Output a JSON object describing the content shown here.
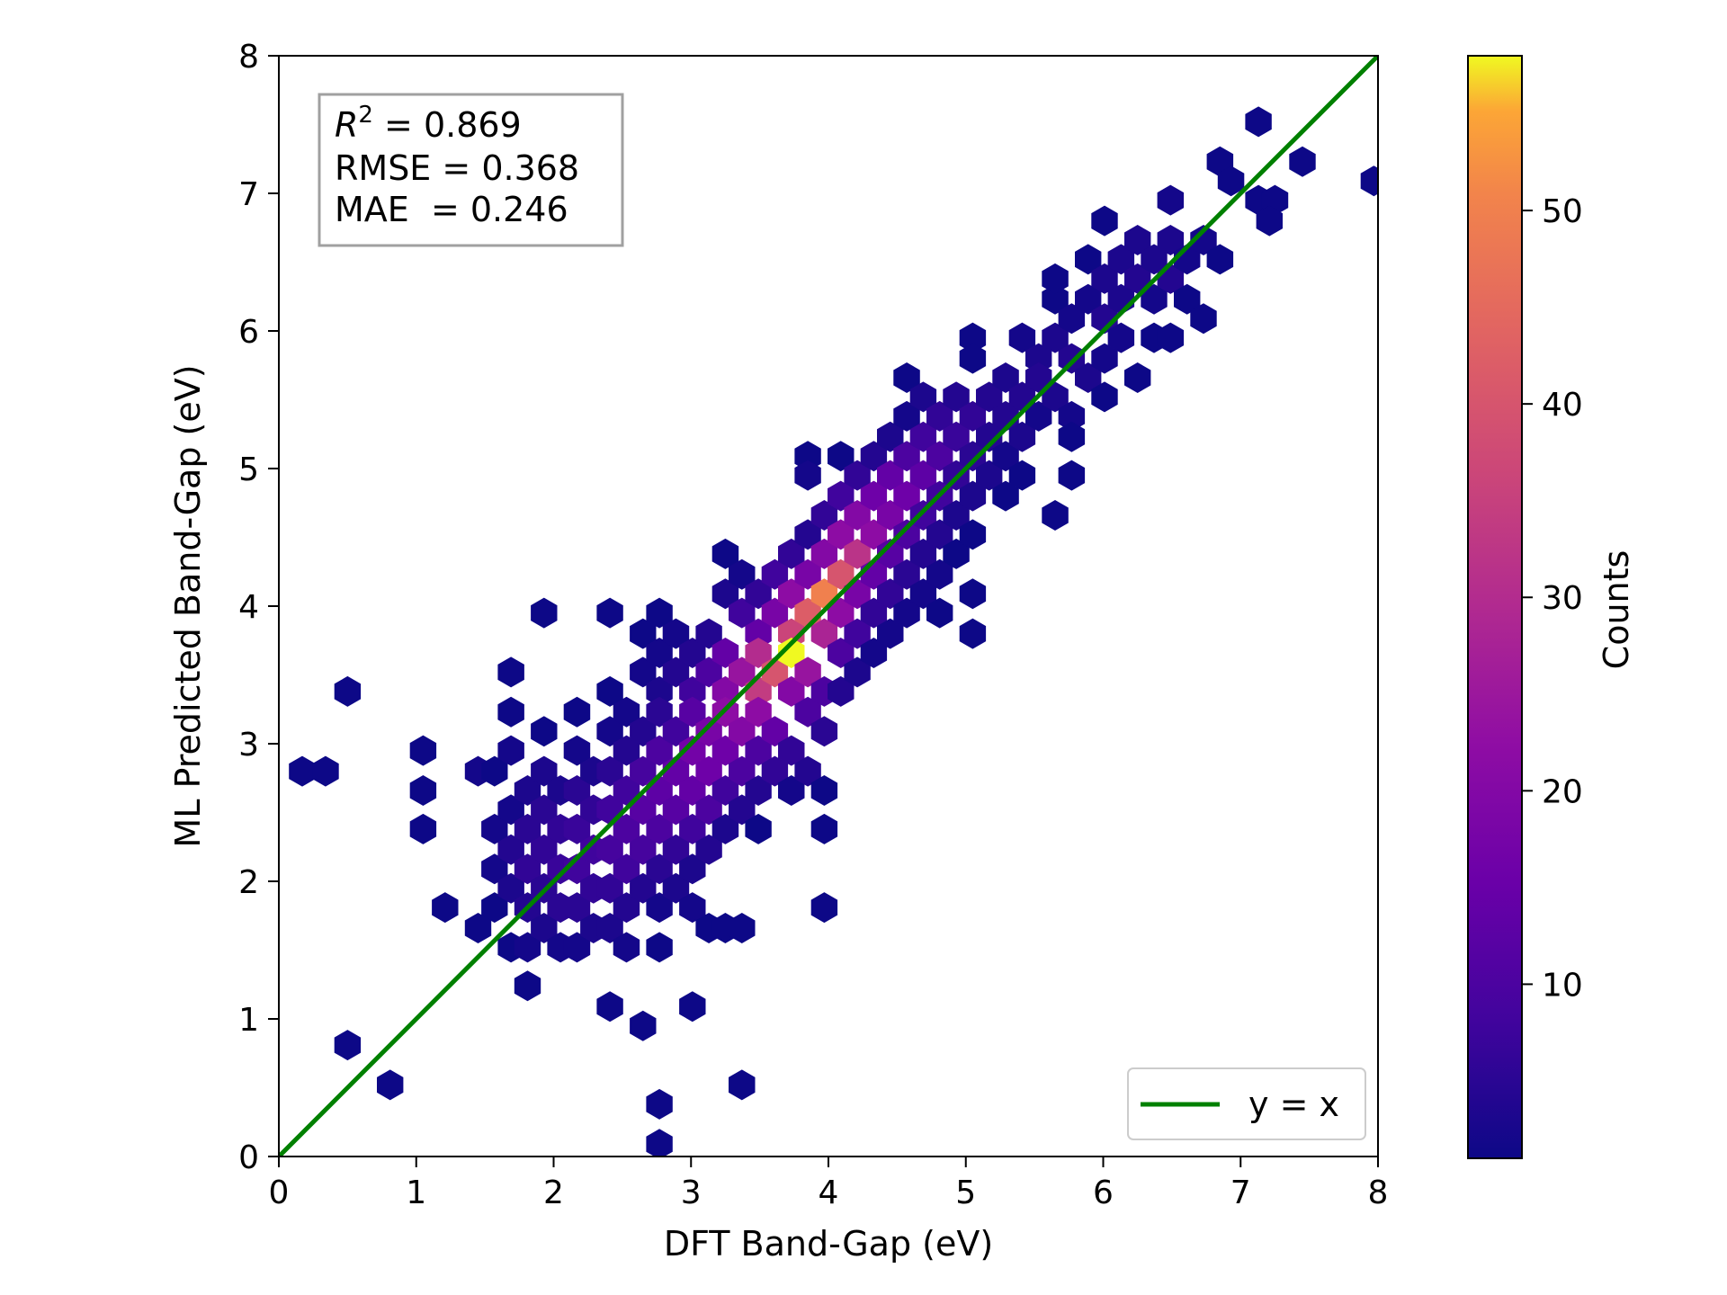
{
  "chart_data": {
    "type": "heatmap",
    "subtype": "hexbin",
    "title": "",
    "xlabel": "DFT Band-Gap (eV)",
    "ylabel": "ML Predicted Band-Gap (eV)",
    "xlim": [
      0,
      8
    ],
    "ylim": [
      0,
      8
    ],
    "xticks": [
      "0",
      "1",
      "2",
      "3",
      "4",
      "5",
      "6",
      "7",
      "8"
    ],
    "yticks": [
      "0",
      "1",
      "2",
      "3",
      "4",
      "5",
      "6",
      "7",
      "8"
    ],
    "grid": false,
    "colormap": "plasma",
    "colorbar": {
      "label": "Counts",
      "range": [
        1,
        58
      ],
      "ticks": [
        "10",
        "20",
        "30",
        "40",
        "50"
      ]
    },
    "stats": {
      "r2_symbol": "R",
      "r2_sup": "2",
      "r2_text": " = 0.869",
      "rmse_text": "RMSE = 0.368",
      "mae_text": "MAE  = 0.246"
    },
    "legend": {
      "position": "lower-right",
      "entries": [
        {
          "label": "y = x",
          "color": "#008000"
        }
      ]
    },
    "reference_line": {
      "label": "y = x",
      "from": [
        0,
        0
      ],
      "to": [
        8,
        8
      ],
      "color": "#008000"
    },
    "bins": [
      [
        0.17,
        2.8,
        1
      ],
      [
        0.34,
        2.8,
        1
      ],
      [
        0.5,
        3.38,
        1
      ],
      [
        0.5,
        0.81,
        1
      ],
      [
        0.81,
        0.52,
        1
      ],
      [
        1.05,
        2.95,
        1
      ],
      [
        1.05,
        2.66,
        1
      ],
      [
        1.05,
        2.38,
        1
      ],
      [
        1.21,
        1.81,
        1
      ],
      [
        1.45,
        2.8,
        2
      ],
      [
        1.57,
        2.8,
        1
      ],
      [
        1.57,
        2.38,
        2
      ],
      [
        1.57,
        2.09,
        2
      ],
      [
        1.57,
        1.81,
        1
      ],
      [
        1.45,
        1.66,
        1
      ],
      [
        1.69,
        2.52,
        2
      ],
      [
        1.69,
        2.23,
        4
      ],
      [
        1.69,
        1.95,
        3
      ],
      [
        1.69,
        1.52,
        1
      ],
      [
        1.69,
        3.52,
        1
      ],
      [
        1.69,
        3.23,
        1
      ],
      [
        1.69,
        2.95,
        2
      ],
      [
        1.81,
        2.66,
        3
      ],
      [
        1.81,
        2.38,
        5
      ],
      [
        1.81,
        2.09,
        6
      ],
      [
        1.81,
        1.81,
        4
      ],
      [
        1.81,
        1.52,
        2
      ],
      [
        1.81,
        1.24,
        1
      ],
      [
        1.93,
        3.09,
        1
      ],
      [
        1.93,
        2.8,
        3
      ],
      [
        1.93,
        2.52,
        5
      ],
      [
        1.93,
        2.23,
        6
      ],
      [
        1.93,
        1.95,
        5
      ],
      [
        1.93,
        1.66,
        3
      ],
      [
        1.93,
        3.95,
        1
      ],
      [
        2.05,
        2.66,
        3
      ],
      [
        2.05,
        2.38,
        6
      ],
      [
        2.05,
        2.09,
        7
      ],
      [
        2.05,
        1.81,
        5
      ],
      [
        2.05,
        1.52,
        2
      ],
      [
        2.17,
        3.23,
        1
      ],
      [
        2.17,
        2.95,
        2
      ],
      [
        2.17,
        2.66,
        5
      ],
      [
        2.17,
        2.38,
        7
      ],
      [
        2.17,
        2.09,
        8
      ],
      [
        2.17,
        1.81,
        5
      ],
      [
        2.17,
        1.52,
        2
      ],
      [
        2.29,
        2.8,
        3
      ],
      [
        2.29,
        2.52,
        6
      ],
      [
        2.29,
        2.23,
        8
      ],
      [
        2.29,
        1.95,
        6
      ],
      [
        2.29,
        1.66,
        3
      ],
      [
        2.41,
        3.09,
        2
      ],
      [
        2.41,
        2.8,
        5
      ],
      [
        2.41,
        2.52,
        8
      ],
      [
        2.41,
        2.23,
        9
      ],
      [
        2.41,
        1.95,
        6
      ],
      [
        2.41,
        1.66,
        3
      ],
      [
        2.41,
        1.09,
        1
      ],
      [
        2.41,
        3.38,
        1
      ],
      [
        2.41,
        3.95,
        1
      ],
      [
        2.53,
        3.23,
        2
      ],
      [
        2.53,
        2.95,
        4
      ],
      [
        2.53,
        2.66,
        8
      ],
      [
        2.53,
        2.38,
        10
      ],
      [
        2.53,
        2.09,
        8
      ],
      [
        2.53,
        1.81,
        4
      ],
      [
        2.53,
        1.52,
        2
      ],
      [
        2.65,
        3.8,
        1
      ],
      [
        2.65,
        3.52,
        2
      ],
      [
        2.65,
        3.09,
        4
      ],
      [
        2.65,
        2.8,
        9
      ],
      [
        2.65,
        2.52,
        12
      ],
      [
        2.65,
        2.23,
        9
      ],
      [
        2.65,
        1.95,
        4
      ],
      [
        2.65,
        0.95,
        1
      ],
      [
        2.77,
        3.95,
        1
      ],
      [
        2.77,
        3.66,
        2
      ],
      [
        2.77,
        3.38,
        3
      ],
      [
        2.77,
        3.23,
        5
      ],
      [
        2.77,
        2.95,
        10
      ],
      [
        2.77,
        2.66,
        13
      ],
      [
        2.77,
        2.38,
        10
      ],
      [
        2.77,
        2.09,
        5
      ],
      [
        2.77,
        1.81,
        2
      ],
      [
        2.77,
        1.52,
        1
      ],
      [
        2.77,
        0.38,
        1
      ],
      [
        2.77,
        0.09,
        1
      ],
      [
        2.89,
        3.8,
        2
      ],
      [
        2.89,
        3.52,
        4
      ],
      [
        2.89,
        3.09,
        8
      ],
      [
        2.89,
        2.8,
        14
      ],
      [
        2.89,
        2.52,
        12
      ],
      [
        2.89,
        2.23,
        6
      ],
      [
        2.89,
        1.95,
        3
      ],
      [
        3.01,
        3.66,
        4
      ],
      [
        3.01,
        3.38,
        8
      ],
      [
        3.01,
        3.23,
        12
      ],
      [
        3.01,
        2.95,
        17
      ],
      [
        3.01,
        2.66,
        14
      ],
      [
        3.01,
        2.38,
        8
      ],
      [
        3.01,
        2.09,
        3
      ],
      [
        3.01,
        1.81,
        2
      ],
      [
        3.01,
        1.09,
        1
      ],
      [
        3.13,
        3.8,
        4
      ],
      [
        3.13,
        3.52,
        10
      ],
      [
        3.13,
        3.09,
        18
      ],
      [
        3.13,
        2.8,
        16
      ],
      [
        3.13,
        2.52,
        10
      ],
      [
        3.13,
        2.23,
        4
      ],
      [
        3.13,
        1.66,
        1
      ],
      [
        3.25,
        4.38,
        1
      ],
      [
        3.25,
        4.09,
        3
      ],
      [
        3.25,
        3.66,
        14
      ],
      [
        3.25,
        3.38,
        20
      ],
      [
        3.25,
        3.23,
        22
      ],
      [
        3.25,
        2.95,
        16
      ],
      [
        3.25,
        2.66,
        8
      ],
      [
        3.25,
        2.38,
        3
      ],
      [
        3.25,
        1.66,
        1
      ],
      [
        3.37,
        4.23,
        2
      ],
      [
        3.37,
        3.95,
        8
      ],
      [
        3.37,
        3.52,
        24
      ],
      [
        3.37,
        3.09,
        20
      ],
      [
        3.37,
        2.8,
        10
      ],
      [
        3.37,
        2.52,
        4
      ],
      [
        3.37,
        1.66,
        1
      ],
      [
        3.37,
        0.52,
        1
      ],
      [
        3.49,
        4.09,
        6
      ],
      [
        3.49,
        3.8,
        14
      ],
      [
        3.49,
        3.66,
        30
      ],
      [
        3.49,
        3.38,
        34
      ],
      [
        3.49,
        3.23,
        22
      ],
      [
        3.49,
        2.95,
        10
      ],
      [
        3.49,
        2.66,
        4
      ],
      [
        3.49,
        2.38,
        1
      ],
      [
        3.61,
        4.23,
        8
      ],
      [
        3.61,
        3.95,
        18
      ],
      [
        3.61,
        3.52,
        40
      ],
      [
        3.61,
        3.09,
        14
      ],
      [
        3.61,
        2.8,
        6
      ],
      [
        3.73,
        4.38,
        6
      ],
      [
        3.73,
        4.09,
        22
      ],
      [
        3.73,
        3.8,
        36
      ],
      [
        3.73,
        3.66,
        58
      ],
      [
        3.73,
        3.38,
        20
      ],
      [
        3.73,
        2.95,
        6
      ],
      [
        3.73,
        2.66,
        2
      ],
      [
        3.85,
        4.52,
        4
      ],
      [
        3.85,
        4.23,
        18
      ],
      [
        3.85,
        3.95,
        42
      ],
      [
        3.85,
        3.52,
        24
      ],
      [
        3.85,
        3.23,
        10
      ],
      [
        3.85,
        2.8,
        4
      ],
      [
        3.85,
        5.09,
        1
      ],
      [
        3.85,
        4.95,
        2
      ],
      [
        3.97,
        4.66,
        6
      ],
      [
        3.97,
        4.38,
        20
      ],
      [
        3.97,
        4.09,
        50
      ],
      [
        3.97,
        3.8,
        28
      ],
      [
        3.97,
        3.38,
        10
      ],
      [
        3.97,
        3.09,
        5
      ],
      [
        3.97,
        2.66,
        1
      ],
      [
        3.97,
        2.38,
        1
      ],
      [
        3.97,
        1.81,
        1
      ],
      [
        4.09,
        4.8,
        8
      ],
      [
        4.09,
        4.52,
        22
      ],
      [
        4.09,
        4.23,
        40
      ],
      [
        4.09,
        3.95,
        22
      ],
      [
        4.09,
        3.66,
        10
      ],
      [
        4.09,
        3.38,
        4
      ],
      [
        4.09,
        5.09,
        1
      ],
      [
        4.21,
        4.95,
        6
      ],
      [
        4.21,
        4.66,
        20
      ],
      [
        4.21,
        4.38,
        32
      ],
      [
        4.21,
        4.09,
        18
      ],
      [
        4.21,
        3.8,
        8
      ],
      [
        4.21,
        3.52,
        3
      ],
      [
        4.33,
        5.09,
        4
      ],
      [
        4.33,
        4.8,
        16
      ],
      [
        4.33,
        4.52,
        22
      ],
      [
        4.33,
        4.23,
        14
      ],
      [
        4.33,
        3.95,
        6
      ],
      [
        4.33,
        3.66,
        2
      ],
      [
        4.45,
        5.23,
        3
      ],
      [
        4.45,
        4.95,
        14
      ],
      [
        4.45,
        4.66,
        18
      ],
      [
        4.45,
        4.38,
        12
      ],
      [
        4.45,
        4.09,
        6
      ],
      [
        4.45,
        3.8,
        2
      ],
      [
        4.57,
        5.38,
        2
      ],
      [
        4.57,
        5.09,
        10
      ],
      [
        4.57,
        4.8,
        16
      ],
      [
        4.57,
        4.52,
        10
      ],
      [
        4.57,
        4.23,
        5
      ],
      [
        4.57,
        3.95,
        2
      ],
      [
        4.57,
        5.66,
        1
      ],
      [
        4.69,
        5.52,
        3
      ],
      [
        4.69,
        5.23,
        8
      ],
      [
        4.69,
        4.95,
        13
      ],
      [
        4.69,
        4.66,
        8
      ],
      [
        4.69,
        4.38,
        4
      ],
      [
        4.69,
        4.09,
        2
      ],
      [
        4.81,
        5.38,
        6
      ],
      [
        4.81,
        5.09,
        10
      ],
      [
        4.81,
        4.8,
        8
      ],
      [
        4.81,
        4.52,
        4
      ],
      [
        4.81,
        4.23,
        2
      ],
      [
        4.81,
        3.95,
        1
      ],
      [
        4.93,
        5.52,
        4
      ],
      [
        4.93,
        5.23,
        7
      ],
      [
        4.93,
        4.95,
        6
      ],
      [
        4.93,
        4.66,
        3
      ],
      [
        4.93,
        4.38,
        1
      ],
      [
        5.05,
        5.38,
        6
      ],
      [
        5.05,
        5.09,
        5
      ],
      [
        5.05,
        4.8,
        3
      ],
      [
        5.05,
        4.52,
        1
      ],
      [
        5.05,
        5.95,
        1
      ],
      [
        5.05,
        5.8,
        1
      ],
      [
        5.05,
        4.09,
        1
      ],
      [
        5.05,
        3.8,
        1
      ],
      [
        5.17,
        5.52,
        4
      ],
      [
        5.17,
        5.23,
        4
      ],
      [
        5.17,
        4.95,
        3
      ],
      [
        5.29,
        5.66,
        3
      ],
      [
        5.29,
        5.38,
        4
      ],
      [
        5.29,
        5.09,
        2
      ],
      [
        5.29,
        4.8,
        1
      ],
      [
        5.41,
        5.95,
        2
      ],
      [
        5.41,
        5.52,
        4
      ],
      [
        5.41,
        5.23,
        3
      ],
      [
        5.41,
        4.95,
        1
      ],
      [
        5.53,
        5.8,
        3
      ],
      [
        5.53,
        5.66,
        4
      ],
      [
        5.53,
        5.38,
        2
      ],
      [
        5.65,
        6.23,
        1
      ],
      [
        5.65,
        6.38,
        1
      ],
      [
        5.65,
        5.95,
        3
      ],
      [
        5.65,
        5.52,
        3
      ],
      [
        5.65,
        4.66,
        1
      ],
      [
        5.77,
        6.09,
        2
      ],
      [
        5.77,
        5.8,
        4
      ],
      [
        5.77,
        5.38,
        2
      ],
      [
        5.77,
        4.95,
        1
      ],
      [
        5.77,
        5.23,
        1
      ],
      [
        5.89,
        6.23,
        2
      ],
      [
        5.89,
        5.66,
        3
      ],
      [
        5.89,
        6.52,
        1
      ],
      [
        6.01,
        6.38,
        3
      ],
      [
        6.01,
        6.09,
        4
      ],
      [
        6.01,
        5.8,
        2
      ],
      [
        6.01,
        6.8,
        1
      ],
      [
        6.01,
        5.52,
        1
      ],
      [
        6.13,
        6.52,
        3
      ],
      [
        6.13,
        6.23,
        3
      ],
      [
        6.13,
        5.95,
        2
      ],
      [
        6.25,
        6.66,
        3
      ],
      [
        6.25,
        6.38,
        4
      ],
      [
        6.25,
        5.66,
        1
      ],
      [
        6.37,
        6.52,
        3
      ],
      [
        6.37,
        6.23,
        2
      ],
      [
        6.37,
        5.95,
        1
      ],
      [
        6.49,
        6.95,
        2
      ],
      [
        6.49,
        6.66,
        3
      ],
      [
        6.49,
        6.38,
        4
      ],
      [
        6.49,
        5.95,
        1
      ],
      [
        6.61,
        6.52,
        2
      ],
      [
        6.61,
        6.23,
        1
      ],
      [
        6.73,
        6.66,
        2
      ],
      [
        6.73,
        6.09,
        1
      ],
      [
        6.85,
        7.23,
        1
      ],
      [
        6.85,
        6.52,
        1
      ],
      [
        6.93,
        7.09,
        1
      ],
      [
        7.13,
        7.52,
        1
      ],
      [
        7.13,
        6.95,
        1
      ],
      [
        7.25,
        6.95,
        1
      ],
      [
        7.21,
        6.8,
        1
      ],
      [
        7.45,
        7.23,
        1
      ],
      [
        7.97,
        7.09,
        1
      ]
    ]
  }
}
